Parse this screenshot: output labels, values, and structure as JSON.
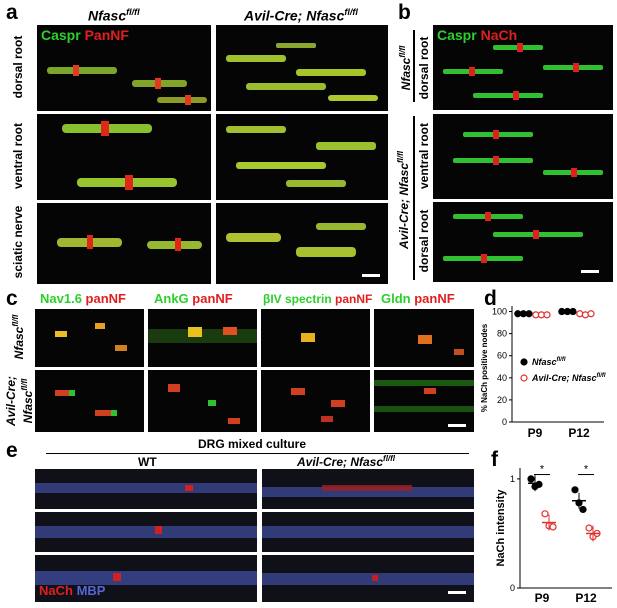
{
  "panels": {
    "a": {
      "label": "a",
      "col1": "Nfasc",
      "col1_sup": "fl/fl",
      "col2": "Avil-Cre; Nfasc",
      "col2_sup": "fl/fl",
      "stain1": "Caspr",
      "stain2": "PanNF",
      "rows": [
        "dorsal root",
        "ventral root",
        "sciatic nerve"
      ]
    },
    "b": {
      "label": "b",
      "stain1": "Caspr",
      "stain2": "NaCh",
      "group1": "Nfasc",
      "group1_sup": "fl/fl",
      "group2": "Avil-Cre; Nfasc",
      "group2_sup": "fl/fl",
      "rows": [
        "dorsal root",
        "ventral root",
        "dorsal root"
      ]
    },
    "c": {
      "label": "c",
      "stains": [
        {
          "green": "Nav1.6",
          "red": "panNF"
        },
        {
          "green": "AnkG",
          "red": "panNF"
        },
        {
          "green": "βIV spectrin",
          "red": "panNF"
        },
        {
          "green": "Gldn",
          "red": "panNF"
        }
      ],
      "row1": "Nfasc",
      "row1_sup": "fl/fl",
      "row2a": "Avil-Cre;",
      "row2b": "Nfasc",
      "row2_sup": "fl/fl"
    },
    "d": {
      "label": "d"
    },
    "e": {
      "label": "e",
      "culture_title": "DRG mixed culture",
      "col1": "WT",
      "col2": "Avil-Cre; Nfasc",
      "col2_sup": "fl/fl",
      "stain1": "NaCh",
      "stain2": "MBP"
    },
    "f": {
      "label": "f"
    }
  },
  "chart_data": [
    {
      "panel": "d",
      "type": "scatter",
      "ylabel": "% NaCh positive nodes",
      "categories": [
        "P9",
        "P12"
      ],
      "yticks": [
        0,
        20,
        40,
        60,
        80,
        100
      ],
      "ylim": [
        0,
        105
      ],
      "legend": [
        {
          "name": "Nfasc",
          "sup": "fl/fl",
          "marker": "filled",
          "color": "#000000"
        },
        {
          "name": "Avil-Cre; Nfasc",
          "sup": "fl/fl",
          "marker": "open",
          "color": "#e03030"
        }
      ],
      "series": [
        {
          "name": "Nfasc fl/fl",
          "values": [
            [
              98,
              98,
              98
            ],
            [
              100,
              100,
              100
            ]
          ]
        },
        {
          "name": "Avil-Cre; Nfasc fl/fl",
          "values": [
            [
              97,
              97,
              97
            ],
            [
              98,
              97,
              98
            ]
          ]
        }
      ]
    },
    {
      "panel": "f",
      "type": "scatter",
      "ylabel": "NaCh intensity",
      "categories": [
        "P9",
        "P12"
      ],
      "yticks": [
        0,
        1
      ],
      "ylim": [
        0,
        1.1
      ],
      "significance": [
        "*",
        "*"
      ],
      "series": [
        {
          "name": "Nfasc fl/fl",
          "color": "#000000",
          "values": [
            [
              1.0,
              0.93,
              0.95
            ],
            [
              0.9,
              0.78,
              0.72
            ]
          ],
          "mean": [
            0.96,
            0.8
          ]
        },
        {
          "name": "Avil-Cre; Nfasc fl/fl",
          "color": "#e03030",
          "values": [
            [
              0.68,
              0.57,
              0.56
            ],
            [
              0.55,
              0.47,
              0.5
            ]
          ],
          "mean": [
            0.6,
            0.5
          ]
        }
      ]
    }
  ],
  "colors": {
    "green": "#2bd02b",
    "red": "#e02020",
    "blue": "#5566d8"
  }
}
